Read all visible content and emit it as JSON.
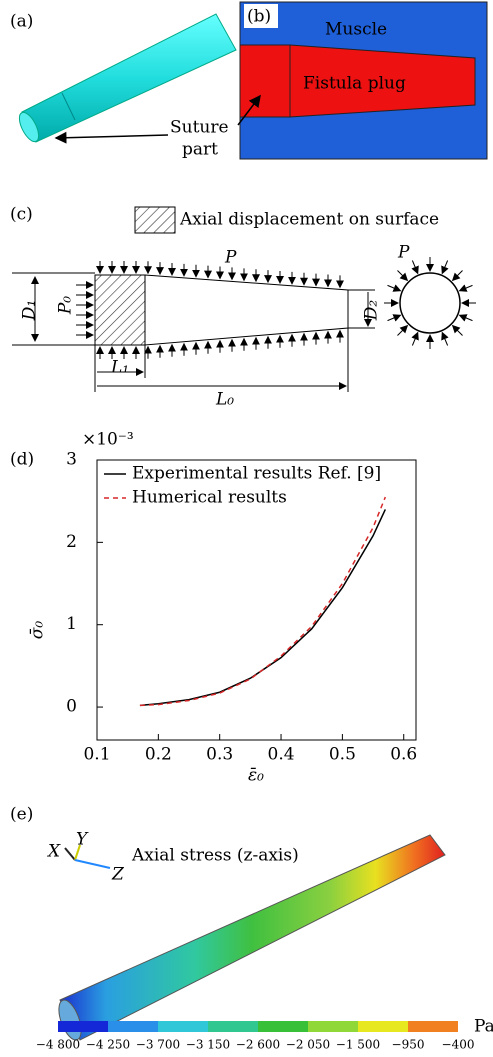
{
  "panel_a": {
    "label": "(a)",
    "annotation": [
      "Suture",
      "part"
    ]
  },
  "panel_b": {
    "label": "(b)",
    "muscle": "Muscle",
    "plug": "Fistula plug"
  },
  "panel_c": {
    "label": "(c)",
    "legend": "Axial displacement on surface",
    "pressure": "P",
    "pressure_ring": "P",
    "D1": "D₁",
    "D2": "D₂",
    "P0": "P₀",
    "L1": "L₁",
    "L0": "L₀"
  },
  "chart_data": {
    "type": "line",
    "label": "(d)",
    "y_multiplier": "×10⁻³",
    "x_label": "ε̄₀",
    "y_label": "σ̄₀",
    "x": [
      0.17,
      0.2,
      0.25,
      0.3,
      0.35,
      0.4,
      0.45,
      0.5,
      0.55,
      0.57
    ],
    "series": [
      {
        "name": "Experimental results Ref. [9]",
        "color": "#000000",
        "dash": false,
        "values": [
          0.02,
          0.04,
          0.09,
          0.18,
          0.35,
          0.6,
          0.95,
          1.45,
          2.08,
          2.4
        ]
      },
      {
        "name": "Humerical results",
        "color": "#d62728",
        "dash": true,
        "values": [
          0.02,
          0.03,
          0.08,
          0.17,
          0.34,
          0.62,
          0.98,
          1.5,
          2.18,
          2.55
        ]
      }
    ],
    "xlim": [
      0.1,
      0.62
    ],
    "xticks": [
      0.1,
      0.2,
      0.3,
      0.4,
      0.5,
      0.6
    ],
    "ylim": [
      -0.4,
      3
    ],
    "yticks": [
      0,
      1,
      2,
      3
    ]
  },
  "panel_e": {
    "label": "(e)",
    "title": "Axial stress (z-axis)",
    "axes": [
      "X",
      "Y",
      "Z"
    ],
    "colorbar_labels": [
      "−4 800",
      "−4 250",
      "−3 700",
      "−3 150",
      "−2 600",
      "−2 050",
      "−1 500",
      "−950",
      "−400"
    ],
    "unit": "Pa"
  }
}
